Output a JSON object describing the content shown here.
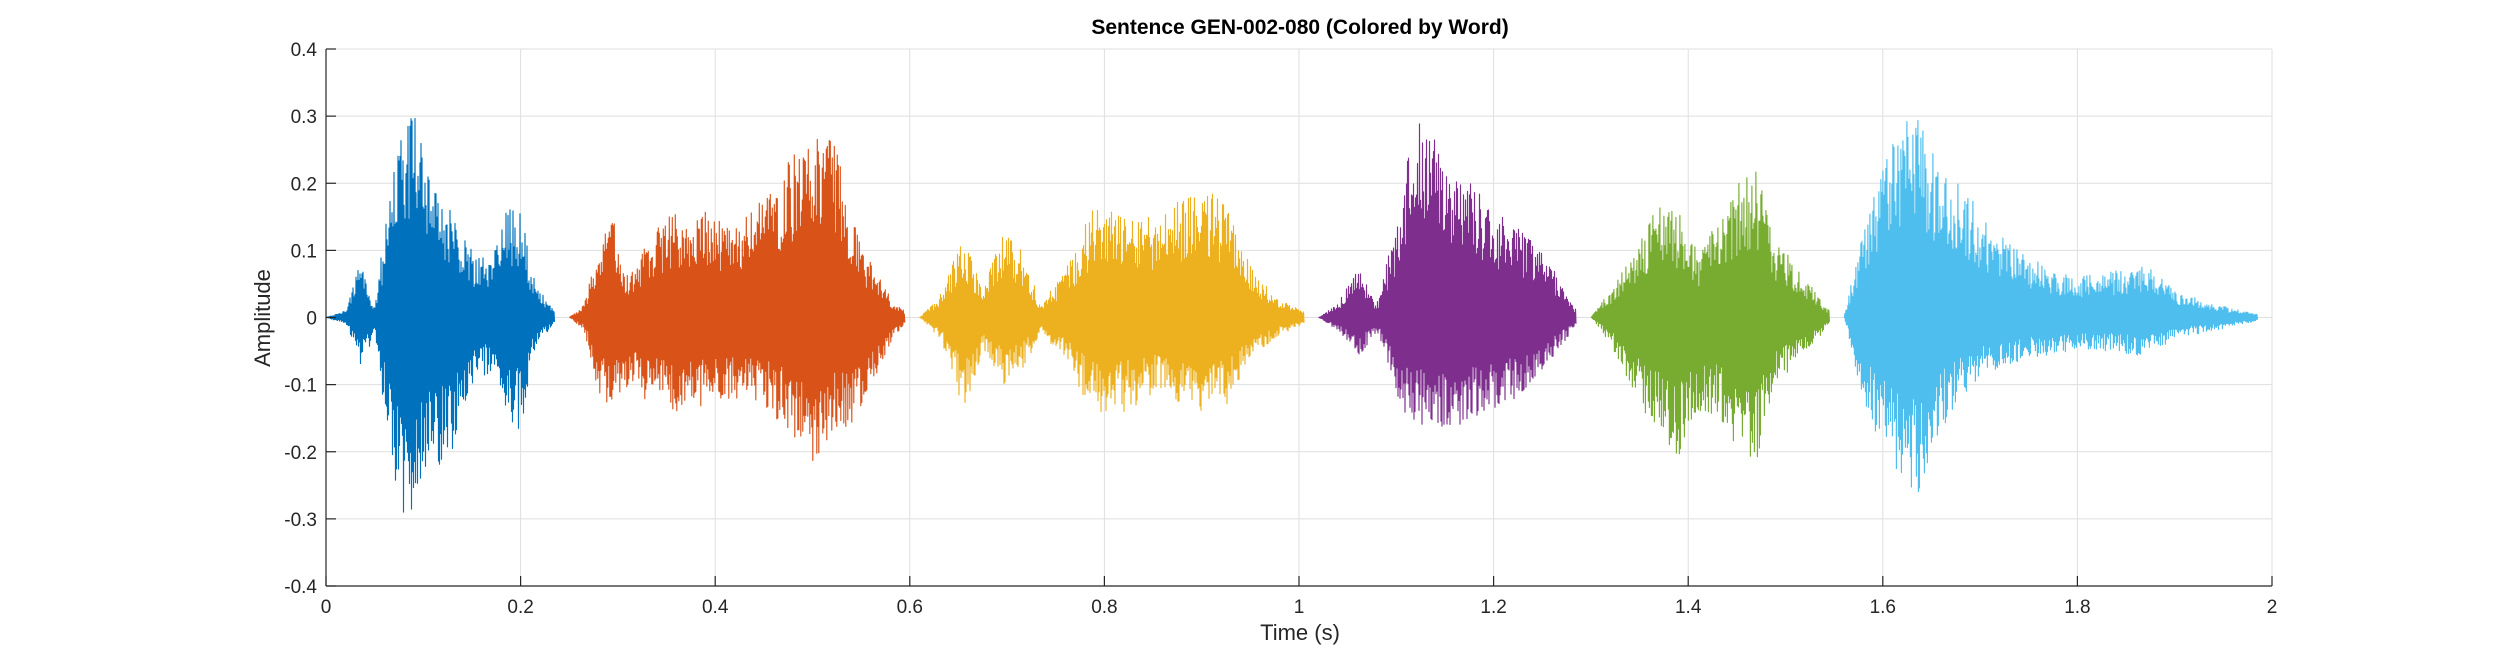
{
  "chart_data": {
    "type": "line",
    "title": "Sentence GEN-002-080 (Colored by Word)",
    "xlabel": "Time (s)",
    "ylabel": "Amplitude",
    "xlim": [
      0,
      2
    ],
    "ylim": [
      -0.4,
      0.4
    ],
    "x_ticks": [
      0,
      0.2,
      0.4,
      0.6,
      0.8,
      1,
      1.2,
      1.4,
      1.6,
      1.8,
      2
    ],
    "x_tick_labels": [
      "0",
      "0.2",
      "0.4",
      "0.6",
      "0.8",
      "1",
      "1.2",
      "1.4",
      "1.6",
      "1.8",
      "2"
    ],
    "y_ticks": [
      -0.4,
      -0.3,
      -0.2,
      -0.1,
      0,
      0.1,
      0.2,
      0.3,
      0.4
    ],
    "y_tick_labels": [
      "-0.4",
      "-0.3",
      "-0.2",
      "-0.1",
      "0",
      "0.1",
      "0.2",
      "0.3",
      "0.4"
    ],
    "grid": true,
    "series": [
      {
        "color": "#0072BD",
        "x_range": [
          0.0,
          0.235
        ],
        "envelope": [
          {
            "t": 0.0,
            "upper": 0.0,
            "lower": 0.0
          },
          {
            "t": 0.02,
            "upper": 0.01,
            "lower": -0.01
          },
          {
            "t": 0.035,
            "upper": 0.08,
            "lower": -0.07
          },
          {
            "t": 0.05,
            "upper": 0.02,
            "lower": -0.03
          },
          {
            "t": 0.065,
            "upper": 0.18,
            "lower": -0.2
          },
          {
            "t": 0.08,
            "upper": 0.3,
            "lower": -0.31
          },
          {
            "t": 0.095,
            "upper": 0.3,
            "lower": -0.27
          },
          {
            "t": 0.11,
            "upper": 0.2,
            "lower": -0.23
          },
          {
            "t": 0.13,
            "upper": 0.16,
            "lower": -0.2
          },
          {
            "t": 0.15,
            "upper": 0.1,
            "lower": -0.1
          },
          {
            "t": 0.17,
            "upper": 0.08,
            "lower": -0.08
          },
          {
            "t": 0.185,
            "upper": 0.17,
            "lower": -0.15
          },
          {
            "t": 0.2,
            "upper": 0.16,
            "lower": -0.17
          },
          {
            "t": 0.215,
            "upper": 0.05,
            "lower": -0.04
          },
          {
            "t": 0.235,
            "upper": 0.01,
            "lower": -0.01
          }
        ]
      },
      {
        "color": "#D95319",
        "x_range": [
          0.25,
          0.595
        ],
        "envelope": [
          {
            "t": 0.25,
            "upper": 0.0,
            "lower": 0.0
          },
          {
            "t": 0.265,
            "upper": 0.02,
            "lower": -0.02
          },
          {
            "t": 0.28,
            "upper": 0.1,
            "lower": -0.12
          },
          {
            "t": 0.295,
            "upper": 0.16,
            "lower": -0.14
          },
          {
            "t": 0.31,
            "upper": 0.06,
            "lower": -0.1
          },
          {
            "t": 0.33,
            "upper": 0.12,
            "lower": -0.13
          },
          {
            "t": 0.36,
            "upper": 0.16,
            "lower": -0.14
          },
          {
            "t": 0.39,
            "upper": 0.16,
            "lower": -0.13
          },
          {
            "t": 0.42,
            "upper": 0.13,
            "lower": -0.12
          },
          {
            "t": 0.45,
            "upper": 0.18,
            "lower": -0.13
          },
          {
            "t": 0.48,
            "upper": 0.25,
            "lower": -0.18
          },
          {
            "t": 0.5,
            "upper": 0.31,
            "lower": -0.24
          },
          {
            "t": 0.52,
            "upper": 0.28,
            "lower": -0.17
          },
          {
            "t": 0.54,
            "upper": 0.15,
            "lower": -0.16
          },
          {
            "t": 0.56,
            "upper": 0.08,
            "lower": -0.1
          },
          {
            "t": 0.58,
            "upper": 0.03,
            "lower": -0.04
          },
          {
            "t": 0.595,
            "upper": 0.01,
            "lower": -0.01
          }
        ]
      },
      {
        "color": "#EDB120",
        "x_range": [
          0.61,
          1.005
        ],
        "envelope": [
          {
            "t": 0.61,
            "upper": 0.0,
            "lower": 0.0
          },
          {
            "t": 0.63,
            "upper": 0.03,
            "lower": -0.03
          },
          {
            "t": 0.655,
            "upper": 0.12,
            "lower": -0.14
          },
          {
            "t": 0.675,
            "upper": 0.05,
            "lower": -0.05
          },
          {
            "t": 0.695,
            "upper": 0.13,
            "lower": -0.1
          },
          {
            "t": 0.715,
            "upper": 0.1,
            "lower": -0.08
          },
          {
            "t": 0.735,
            "upper": 0.02,
            "lower": -0.02
          },
          {
            "t": 0.76,
            "upper": 0.07,
            "lower": -0.07
          },
          {
            "t": 0.79,
            "upper": 0.17,
            "lower": -0.15
          },
          {
            "t": 0.82,
            "upper": 0.16,
            "lower": -0.14
          },
          {
            "t": 0.85,
            "upper": 0.15,
            "lower": -0.12
          },
          {
            "t": 0.88,
            "upper": 0.18,
            "lower": -0.13
          },
          {
            "t": 0.9,
            "upper": 0.2,
            "lower": -0.14
          },
          {
            "t": 0.925,
            "upper": 0.17,
            "lower": -0.13
          },
          {
            "t": 0.95,
            "upper": 0.08,
            "lower": -0.06
          },
          {
            "t": 0.975,
            "upper": 0.03,
            "lower": -0.03
          },
          {
            "t": 1.005,
            "upper": 0.01,
            "lower": -0.01
          }
        ]
      },
      {
        "color": "#7E2F8E",
        "x_range": [
          1.02,
          1.285
        ],
        "envelope": [
          {
            "t": 1.02,
            "upper": 0.0,
            "lower": 0.0
          },
          {
            "t": 1.04,
            "upper": 0.02,
            "lower": -0.02
          },
          {
            "t": 1.06,
            "upper": 0.08,
            "lower": -0.06
          },
          {
            "t": 1.08,
            "upper": 0.02,
            "lower": -0.02
          },
          {
            "t": 1.1,
            "upper": 0.14,
            "lower": -0.12
          },
          {
            "t": 1.12,
            "upper": 0.31,
            "lower": -0.17
          },
          {
            "t": 1.14,
            "upper": 0.27,
            "lower": -0.17
          },
          {
            "t": 1.165,
            "upper": 0.22,
            "lower": -0.16
          },
          {
            "t": 1.19,
            "upper": 0.18,
            "lower": -0.14
          },
          {
            "t": 1.215,
            "upper": 0.14,
            "lower": -0.13
          },
          {
            "t": 1.24,
            "upper": 0.12,
            "lower": -0.11
          },
          {
            "t": 1.26,
            "upper": 0.08,
            "lower": -0.06
          },
          {
            "t": 1.285,
            "upper": 0.01,
            "lower": -0.01
          }
        ]
      },
      {
        "color": "#77AC30",
        "x_range": [
          1.3,
          1.545
        ],
        "envelope": [
          {
            "t": 1.3,
            "upper": 0.0,
            "lower": 0.0
          },
          {
            "t": 1.32,
            "upper": 0.04,
            "lower": -0.04
          },
          {
            "t": 1.345,
            "upper": 0.11,
            "lower": -0.12
          },
          {
            "t": 1.37,
            "upper": 0.17,
            "lower": -0.18
          },
          {
            "t": 1.39,
            "upper": 0.16,
            "lower": -0.21
          },
          {
            "t": 1.41,
            "upper": 0.1,
            "lower": -0.14
          },
          {
            "t": 1.43,
            "upper": 0.14,
            "lower": -0.15
          },
          {
            "t": 1.45,
            "upper": 0.2,
            "lower": -0.2
          },
          {
            "t": 1.47,
            "upper": 0.22,
            "lower": -0.23
          },
          {
            "t": 1.49,
            "upper": 0.12,
            "lower": -0.1
          },
          {
            "t": 1.51,
            "upper": 0.08,
            "lower": -0.07
          },
          {
            "t": 1.53,
            "upper": 0.04,
            "lower": -0.04
          },
          {
            "t": 1.545,
            "upper": 0.01,
            "lower": -0.01
          }
        ]
      },
      {
        "color": "#4DBEEE",
        "x_range": [
          1.56,
          1.985
        ],
        "envelope": [
          {
            "t": 1.56,
            "upper": 0.0,
            "lower": 0.0
          },
          {
            "t": 1.575,
            "upper": 0.1,
            "lower": -0.1
          },
          {
            "t": 1.595,
            "upper": 0.2,
            "lower": -0.19
          },
          {
            "t": 1.615,
            "upper": 0.29,
            "lower": -0.24
          },
          {
            "t": 1.635,
            "upper": 0.3,
            "lower": -0.27
          },
          {
            "t": 1.655,
            "upper": 0.24,
            "lower": -0.18
          },
          {
            "t": 1.68,
            "upper": 0.2,
            "lower": -0.12
          },
          {
            "t": 1.71,
            "upper": 0.14,
            "lower": -0.08
          },
          {
            "t": 1.75,
            "upper": 0.09,
            "lower": -0.06
          },
          {
            "t": 1.8,
            "upper": 0.06,
            "lower": -0.05
          },
          {
            "t": 1.84,
            "upper": 0.07,
            "lower": -0.05
          },
          {
            "t": 1.87,
            "upper": 0.08,
            "lower": -0.06
          },
          {
            "t": 1.9,
            "upper": 0.04,
            "lower": -0.03
          },
          {
            "t": 1.94,
            "upper": 0.02,
            "lower": -0.02
          },
          {
            "t": 1.985,
            "upper": 0.005,
            "lower": -0.005
          }
        ]
      }
    ]
  }
}
